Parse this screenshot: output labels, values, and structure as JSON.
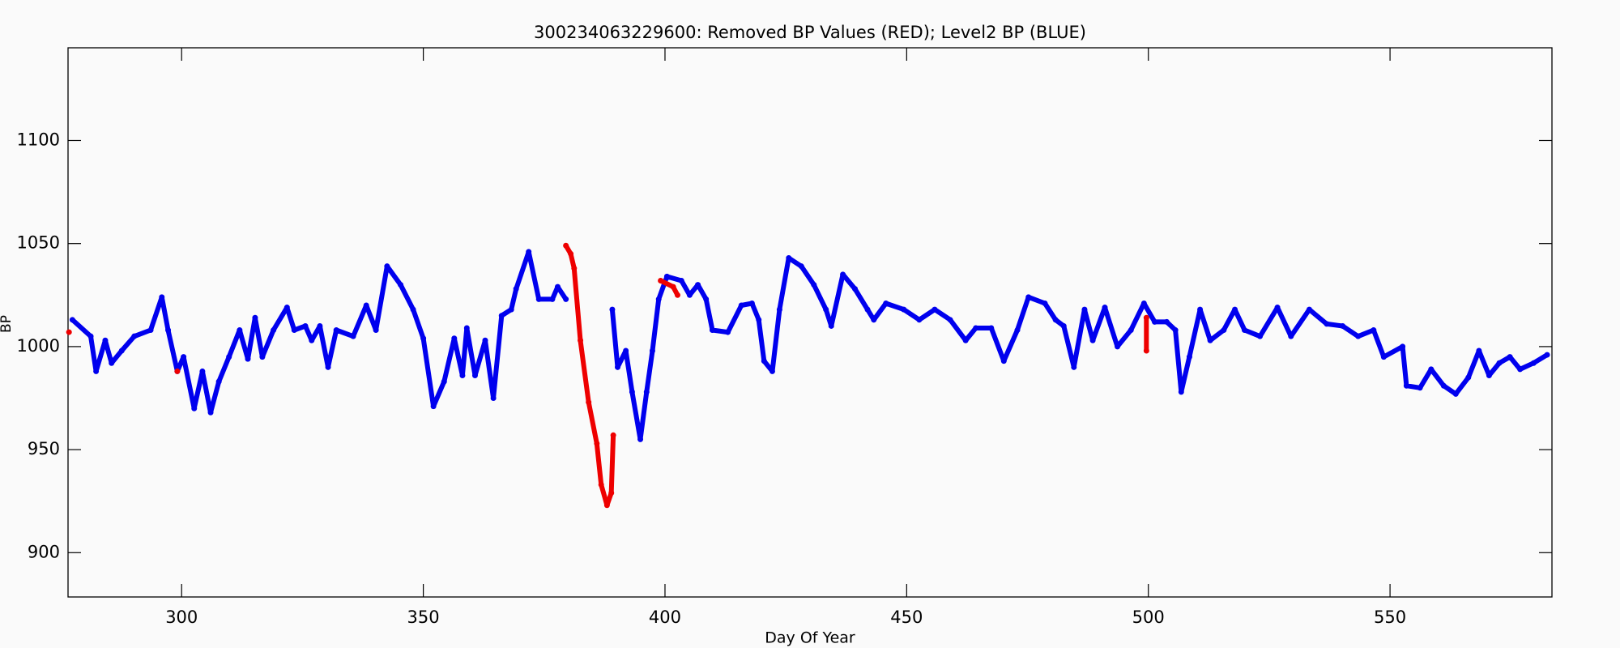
{
  "chart_data": {
    "type": "scatter",
    "title": "300234063229600: Removed BP Values (RED); Level2 BP (BLUE)",
    "x_label": "Day Of Year",
    "y_label": "BP",
    "xlim": [
      276.5,
      583.5
    ],
    "xticks": [
      300,
      350,
      400,
      450,
      500,
      550
    ],
    "ylim": [
      878.5,
      1145
    ],
    "yticks": [
      900,
      950,
      1000,
      1050,
      1100
    ],
    "series": [
      {
        "name": "Level2 BP",
        "color": "#0000ee",
        "x": [
          277.4,
          281.2,
          282.3,
          284.2,
          285.5,
          287.6,
          290.2,
          293.6,
          295.9,
          297.2,
          299.1,
          300.4,
          302.6,
          304.3,
          306,
          307.7,
          309.8,
          312,
          313.7,
          315.2,
          316.7,
          319,
          321.8,
          323.3,
          325.6,
          326.9,
          328.6,
          330.3,
          332,
          335.5,
          338.2,
          340.2,
          342.5,
          345.3,
          347.9,
          350,
          352.1,
          354.3,
          356.4,
          358.1,
          359,
          360.7,
          362.8,
          364.5,
          366.2,
          368.2,
          369.2,
          371.8,
          373.9,
          376.7,
          377.8,
          379.5,
          384,
          389.1,
          390.2,
          391.9,
          393.2,
          394.9,
          396.2,
          397.4,
          398.7,
          400.4,
          403.4,
          405.1,
          406.8,
          408.5,
          409.8,
          413,
          415.8,
          418,
          419.4,
          420.5,
          422.2,
          423.7,
          425.6,
          428.2,
          430.8,
          433.3,
          434.4,
          436.8,
          439.3,
          441.9,
          443.2,
          445.7,
          449.4,
          452.6,
          455.8,
          459,
          462.2,
          464.3,
          467.5,
          470.1,
          472.9,
          475.2,
          478.6,
          480.8,
          482.5,
          484.6,
          486.8,
          488.5,
          491,
          493.6,
          496.4,
          499.1,
          501.3,
          503.8,
          505.6,
          506.8,
          508.5,
          510.7,
          512.8,
          515.6,
          517.9,
          519.9,
          523.1,
          526.7,
          529.5,
          533.3,
          536.9,
          540.2,
          543.4,
          546.6,
          548.7,
          552.6,
          553.4,
          556.2,
          558.5,
          561.1,
          563.6,
          566.2,
          568.4,
          570.5,
          572.6,
          574.8,
          576.9,
          579.7,
          582.5
        ],
        "values": [
          1013,
          1005,
          988,
          1003,
          992,
          998,
          1005,
          1008,
          1024,
          1008,
          988,
          995,
          970,
          988,
          968,
          983,
          995,
          1008,
          994,
          1014,
          995,
          1008,
          1019,
          1008,
          1010,
          1003,
          1010,
          990,
          1008,
          1005,
          1020,
          1008,
          1039,
          1030,
          1018,
          1004,
          971,
          983,
          1004,
          986,
          1009,
          986,
          1003,
          975,
          1015,
          1018,
          1028,
          1046,
          1023,
          1023,
          1029,
          1023,
          null,
          1018,
          990,
          998,
          978,
          955,
          978,
          998,
          1023,
          1034,
          1032,
          1025,
          1030,
          1023,
          1008,
          1007,
          1020,
          1021,
          1013,
          993,
          988,
          1018,
          1043,
          1039,
          1030,
          1018,
          1010,
          1035,
          1028,
          1018,
          1013,
          1021,
          1018,
          1013,
          1018,
          1013,
          1003,
          1009,
          1009,
          993,
          1008,
          1024,
          1021,
          1013,
          1010,
          990,
          1018,
          1003,
          1019,
          1000,
          1008,
          1021,
          1012,
          1012,
          1008,
          978,
          995,
          1018,
          1003,
          1008,
          1018,
          1008,
          1005,
          1019,
          1005,
          1018,
          1011,
          1010,
          1005,
          1008,
          995,
          1000,
          981,
          980,
          989,
          981,
          977,
          985,
          998,
          986,
          992,
          995,
          989,
          992,
          996
        ]
      },
      {
        "name": "Removed BP Values",
        "color": "#ee0000",
        "x": [
          276.7,
          290,
          299.1,
          300,
          379.5,
          380.5,
          381.2,
          382.5,
          384.2,
          385.9,
          386.8,
          388,
          388.9,
          389.3,
          395,
          399.1,
          401.7,
          402.6,
          450,
          499.6,
          499.6
        ],
        "values": [
          1007,
          null,
          988,
          null,
          1049,
          1045,
          1038,
          1003,
          973,
          953,
          933,
          923,
          929,
          957,
          null,
          1032,
          1029,
          1025,
          null,
          1014,
          998
        ]
      }
    ]
  }
}
